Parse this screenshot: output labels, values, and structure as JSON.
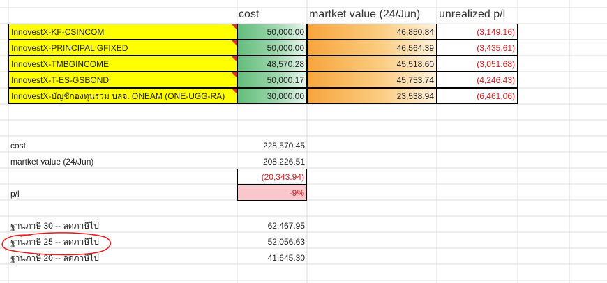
{
  "headers": {
    "cost": "cost",
    "market_value": "martket value (24/Jun)",
    "unrealized": "unrealized p/l"
  },
  "funds": [
    {
      "name": "InnovestX-KF-CSINCOM",
      "cost": "50,000.00",
      "market_value": "46,850.84",
      "pl": "(3,149.16)"
    },
    {
      "name": "InnovestX-PRINCIPAL GFIXED",
      "cost": "50,000.00",
      "market_value": "46,564.39",
      "pl": "(3,435.61)"
    },
    {
      "name": "InnovestX-TMBGINCOME",
      "cost": "48,570.28",
      "market_value": "45,518.60",
      "pl": "(3,051.68)"
    },
    {
      "name": "InnovestX-T-ES-GSBOND",
      "cost": "50,000.17",
      "market_value": "45,753.74",
      "pl": "(4,246.43)"
    },
    {
      "name": "InnovestX-บัญชีกองทุนรวม บลจ. ONEAM (ONE-UGG-RA)",
      "cost": "30,000.00",
      "market_value": "23,538.94",
      "pl": "(6,461.06)"
    }
  ],
  "summary": {
    "cost_label": "cost",
    "cost_value": "228,570.45",
    "mv_label": "martket value (24/Jun)",
    "mv_value": "208,226.51",
    "diff_value": "(20,343.94)",
    "pl_label": "p/l",
    "pl_pct": "-9%"
  },
  "tax": [
    {
      "label": "ฐานภาษี 30 -- ลดภาษีไป",
      "value": "62,467.95"
    },
    {
      "label": "ฐานภาษี 25 -- ลดภาษีไป",
      "value": "52,056.63"
    },
    {
      "label": "ฐานภาษี 20 -- ลดภาษีไป",
      "value": "41,645.30"
    }
  ],
  "colors": {
    "fund_name_bg": "#ffff00",
    "negative_text": "#d32020",
    "pink_fill": "#f9c8cc",
    "annotation": "#e02020"
  }
}
